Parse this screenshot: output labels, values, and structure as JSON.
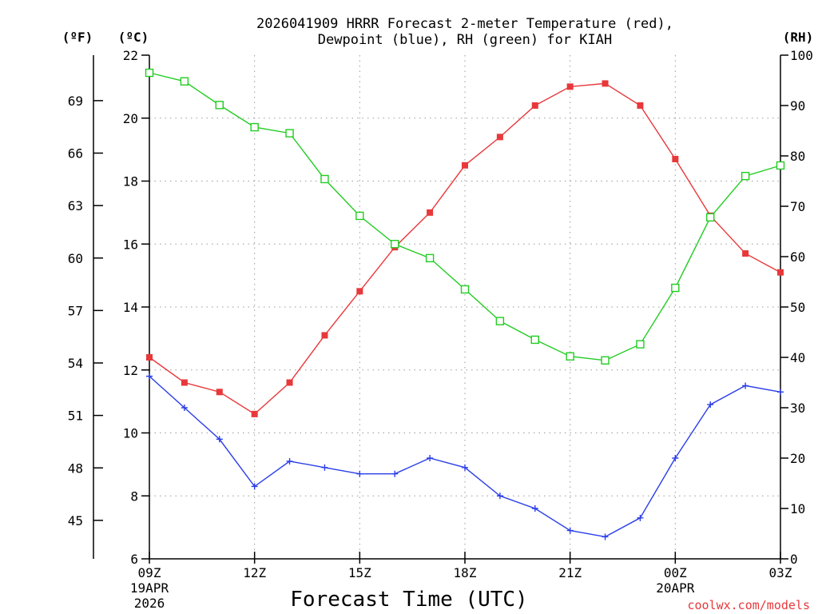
{
  "title_line1": "2026041909 HRRR Forecast 2-meter Temperature (red),",
  "title_line2": "Dewpoint (blue), RH (green) for KIAH",
  "credit": "coolwx.com/models",
  "colors": {
    "temperature": "#e8383a",
    "dewpoint": "#2a3ee8",
    "rh": "#22cc22"
  },
  "chart_data": {
    "type": "line",
    "title": "2026041909 HRRR Forecast 2-meter Temperature (red), Dewpoint (blue), RH (green) for KIAH",
    "xlabel": "Forecast Time (UTC)",
    "x": [
      "09Z",
      "10Z",
      "11Z",
      "12Z",
      "13Z",
      "14Z",
      "15Z",
      "16Z",
      "17Z",
      "18Z",
      "19Z",
      "20Z",
      "21Z",
      "22Z",
      "23Z",
      "00Z",
      "01Z",
      "02Z",
      "03Z"
    ],
    "xlim": [
      0,
      18
    ],
    "x_ticks": [
      {
        "i": 0,
        "label": "09Z",
        "sub1": "19APR",
        "sub2": "2026"
      },
      {
        "i": 3,
        "label": "12Z"
      },
      {
        "i": 6,
        "label": "15Z"
      },
      {
        "i": 9,
        "label": "18Z"
      },
      {
        "i": 12,
        "label": "21Z"
      },
      {
        "i": 15,
        "label": "00Z",
        "sub1": "20APR"
      },
      {
        "i": 18,
        "label": "03Z"
      }
    ],
    "x_grid": [
      3,
      6,
      9,
      12,
      15
    ],
    "left_unit_f": "(ºF)",
    "left_unit_c": "(ºC)",
    "right_unit": "(RH)",
    "ylim_c": [
      6,
      22
    ],
    "yticks_c": [
      6,
      8,
      10,
      12,
      14,
      16,
      18,
      20,
      22
    ],
    "yticks_f": [
      45,
      48,
      51,
      54,
      57,
      60,
      63,
      66,
      69
    ],
    "ylim_rh": [
      0,
      100
    ],
    "yticks_rh": [
      0,
      10,
      20,
      30,
      40,
      50,
      60,
      70,
      80,
      90,
      100
    ],
    "series": [
      {
        "name": "Temperature",
        "unit": "C",
        "axis": "left",
        "marker": "filled-square",
        "values": [
          12.4,
          11.6,
          11.3,
          10.6,
          11.6,
          13.1,
          14.5,
          15.9,
          17.0,
          18.5,
          19.4,
          20.4,
          21.0,
          21.1,
          20.4,
          18.7,
          16.9,
          15.7,
          15.1
        ]
      },
      {
        "name": "Dewpoint",
        "unit": "C",
        "axis": "left",
        "marker": "plus",
        "values": [
          11.8,
          10.8,
          9.8,
          8.3,
          9.1,
          8.9,
          8.7,
          8.7,
          9.2,
          8.9,
          8.0,
          7.6,
          6.9,
          6.7,
          7.3,
          9.2,
          10.9,
          11.5,
          11.3
        ]
      },
      {
        "name": "RH",
        "unit": "%",
        "axis": "right",
        "marker": "open-square",
        "values": [
          96.5,
          94.8,
          90.1,
          85.7,
          84.5,
          75.4,
          68.1,
          62.5,
          59.7,
          53.5,
          47.2,
          43.5,
          40.2,
          39.4,
          42.6,
          53.8,
          67.8,
          76.0,
          78.1
        ]
      }
    ]
  }
}
